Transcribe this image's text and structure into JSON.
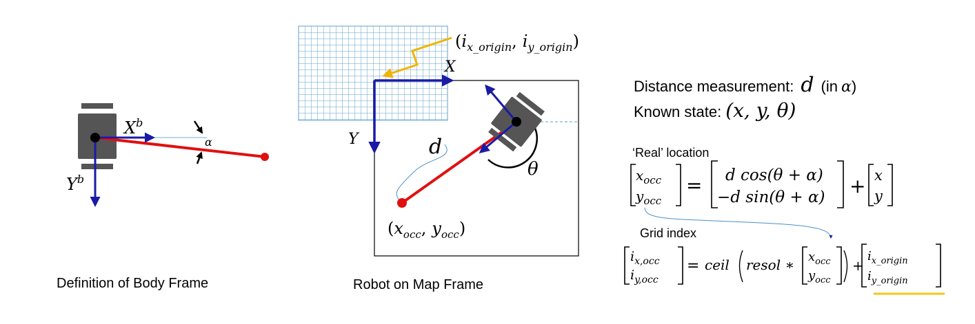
{
  "body_frame": {
    "caption": "Definition of Body Frame",
    "x_axis": "X",
    "y_axis": "Y",
    "superscript": "b",
    "angle": "α"
  },
  "map_frame": {
    "caption": "Robot on Map Frame",
    "x_axis": "X",
    "y_axis": "Y",
    "distance": "d",
    "heading": "θ",
    "origin_label": {
      "open": "(",
      "i": "i",
      "x_sub": "x_origin",
      "sep": ",",
      "y_sub": "y_origin",
      "close": ")"
    },
    "occ_label": {
      "open": "(",
      "x": "x",
      "x_sub": "occ",
      "sep": ",",
      "y": "y",
      "y_sub": "occ",
      "close": ")"
    }
  },
  "info": {
    "measurement_prefix": "Distance measurement:",
    "measurement_var": "d",
    "measurement_suffix_open": "(in",
    "measurement_alpha": "α",
    "measurement_suffix_close": ")",
    "state_prefix": "Known state:",
    "state_tuple": "(x, y, θ)",
    "real_heading": "‘Real’ location",
    "grid_heading": "Grid index"
  },
  "equation_real": {
    "lhs_top": "x",
    "lhs_top_sub": "occ",
    "lhs_bot": "y",
    "lhs_bot_sub": "occ",
    "equals": "=",
    "mid_top": "d cos(θ + α)",
    "mid_bot": "−d sin(θ + α)",
    "plus": "+",
    "rhs_top": "x",
    "rhs_bot": "y"
  },
  "equation_grid": {
    "lhs_top": "i",
    "lhs_top_sub": "x,occ",
    "lhs_bot": "i",
    "lhs_bot_sub": "y,occ",
    "equals": "=",
    "ceil": "ceil",
    "resol": "resol ∗",
    "vec_top": "x",
    "vec_top_sub": "occ",
    "vec_bot": "y",
    "vec_bot_sub": "occ",
    "plus": "+",
    "rhs_top": "i",
    "rhs_top_sub": "x_origin",
    "rhs_bot": "i",
    "rhs_bot_sub": "y_origin"
  },
  "colors": {
    "axis": "#1a1aa6",
    "beam": "#e01010",
    "robot_body": "#555555",
    "grid": "#5fa0c8",
    "connector": "#4a90c8",
    "origin_arrow": "#f0b400",
    "underline": "#f5c518"
  }
}
